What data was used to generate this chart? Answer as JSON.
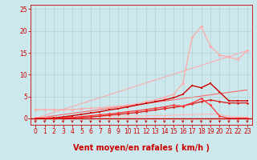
{
  "background_color": "#cce8ec",
  "grid_color": "#aacccc",
  "xlabel": "Vent moyen/en rafales ( km/h )",
  "xlabel_color": "#cc0000",
  "xlabel_fontsize": 7,
  "tick_color": "#cc0000",
  "tick_fontsize": 5.5,
  "xlim": [
    -0.5,
    23.5
  ],
  "ylim": [
    -1.5,
    26
  ],
  "yticks": [
    0,
    5,
    10,
    15,
    20,
    25
  ],
  "xticks": [
    0,
    1,
    2,
    3,
    4,
    5,
    6,
    7,
    8,
    9,
    10,
    11,
    12,
    13,
    14,
    15,
    16,
    17,
    18,
    19,
    20,
    21,
    22,
    23
  ],
  "line_pink_diagonal": {
    "x": [
      0,
      23
    ],
    "y": [
      0,
      15.5
    ],
    "color": "#ffaaaa",
    "lw": 0.8
  },
  "line_red_diagonal": {
    "x": [
      0,
      23
    ],
    "y": [
      0,
      6.5
    ],
    "color": "#ff6666",
    "lw": 0.8
  },
  "line_pink_peak": {
    "x": [
      0,
      1,
      2,
      3,
      4,
      5,
      6,
      7,
      8,
      9,
      10,
      11,
      12,
      13,
      14,
      15,
      16,
      17,
      18,
      19,
      20,
      21,
      22,
      23
    ],
    "y": [
      2.0,
      2.0,
      2.0,
      2.0,
      2.0,
      2.2,
      2.3,
      2.4,
      2.6,
      2.8,
      3.0,
      3.3,
      3.8,
      4.2,
      4.8,
      5.5,
      8.0,
      18.5,
      21.0,
      16.5,
      14.5,
      14.0,
      13.5,
      15.5
    ],
    "color": "#ffaaaa",
    "lw": 0.9,
    "marker": "D",
    "ms": 2.0
  },
  "line_light_red_flat": {
    "x": [
      0,
      1,
      2,
      3,
      4,
      5,
      6,
      7,
      8,
      9,
      10,
      11,
      12,
      13,
      14,
      15,
      16,
      17,
      18,
      19,
      20,
      21,
      22,
      23
    ],
    "y": [
      0.2,
      0.2,
      0.2,
      0.2,
      0.2,
      0.3,
      0.3,
      0.4,
      0.4,
      0.5,
      0.5,
      0.5,
      0.6,
      0.6,
      0.6,
      0.7,
      0.8,
      0.9,
      0.9,
      1.0,
      0.9,
      0.5,
      0.3,
      0.3
    ],
    "color": "#ffbbbb",
    "lw": 0.8,
    "marker": "o",
    "ms": 1.5
  },
  "line_dark_red_main": {
    "x": [
      0,
      1,
      2,
      3,
      4,
      5,
      6,
      7,
      8,
      9,
      10,
      11,
      12,
      13,
      14,
      15,
      16,
      17,
      18,
      19,
      20,
      21,
      22,
      23
    ],
    "y": [
      0.0,
      0.0,
      0.1,
      0.3,
      0.6,
      0.9,
      1.2,
      1.5,
      1.9,
      2.2,
      2.6,
      3.0,
      3.4,
      3.8,
      4.2,
      4.7,
      5.5,
      7.5,
      7.0,
      8.0,
      6.0,
      4.0,
      4.0,
      4.0
    ],
    "color": "#cc0000",
    "lw": 1.0,
    "marker": "s",
    "ms": 1.8
  },
  "line_red_mid": {
    "x": [
      0,
      1,
      2,
      3,
      4,
      5,
      6,
      7,
      8,
      9,
      10,
      11,
      12,
      13,
      14,
      15,
      16,
      17,
      18,
      19,
      20,
      21,
      22,
      23
    ],
    "y": [
      0.0,
      0.0,
      0.0,
      0.1,
      0.2,
      0.4,
      0.6,
      0.8,
      1.0,
      1.2,
      1.5,
      1.7,
      2.0,
      2.3,
      2.6,
      3.0,
      2.8,
      3.5,
      4.5,
      3.0,
      0.5,
      0.0,
      0.0,
      0.0
    ],
    "color": "#ff3333",
    "lw": 0.9,
    "marker": "D",
    "ms": 1.8
  },
  "line_red_low": {
    "x": [
      0,
      1,
      2,
      3,
      4,
      5,
      6,
      7,
      8,
      9,
      10,
      11,
      12,
      13,
      14,
      15,
      16,
      17,
      18,
      19,
      20,
      21,
      22,
      23
    ],
    "y": [
      0.0,
      0.0,
      0.0,
      0.0,
      0.1,
      0.2,
      0.3,
      0.5,
      0.7,
      0.9,
      1.1,
      1.3,
      1.6,
      1.9,
      2.2,
      2.5,
      2.8,
      3.3,
      3.8,
      4.2,
      3.8,
      3.5,
      3.5,
      3.5
    ],
    "color": "#dd1111",
    "lw": 0.9,
    "marker": "o",
    "ms": 1.8
  }
}
